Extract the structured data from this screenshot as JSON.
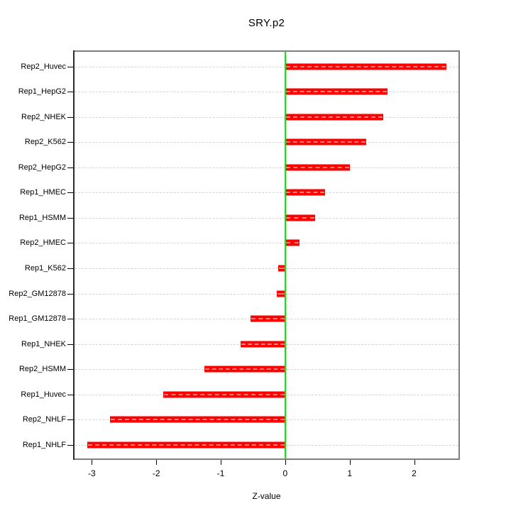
{
  "title": "SRY.p2",
  "xlabel": "Z-value",
  "chart_data": {
    "type": "bar",
    "orientation": "horizontal",
    "title": "SRY.p2",
    "xlabel": "Z-value",
    "ylabel": "",
    "categories": [
      "Rep2_Huvec",
      "Rep1_HepG2",
      "Rep2_NHEK",
      "Rep2_K562",
      "Rep2_HepG2",
      "Rep1_HMEC",
      "Rep1_HSMM",
      "Rep2_HMEC",
      "Rep1_K562",
      "Rep2_GM12878",
      "Rep1_GM12878",
      "Rep1_NHEK",
      "Rep2_HSMM",
      "Rep1_Huvec",
      "Rep2_NHLF",
      "Rep1_NHLF"
    ],
    "values": [
      2.5,
      1.59,
      1.52,
      1.26,
      1.0,
      0.62,
      0.46,
      0.22,
      -0.11,
      -0.13,
      -0.54,
      -0.69,
      -1.25,
      -1.89,
      -2.72,
      -3.07
    ],
    "x_ticks": [
      -3,
      -2,
      -1,
      0,
      1,
      2
    ],
    "xlim": [
      -3.29,
      2.71
    ],
    "grid": true,
    "legend": "none",
    "colors": {
      "bar": "#ff0000",
      "bar_edge": "#ff8080",
      "zero_line": "#00ee00",
      "gridline": "#d4d4d4",
      "box_border": "#7f7f7f",
      "text": "#000000"
    }
  }
}
